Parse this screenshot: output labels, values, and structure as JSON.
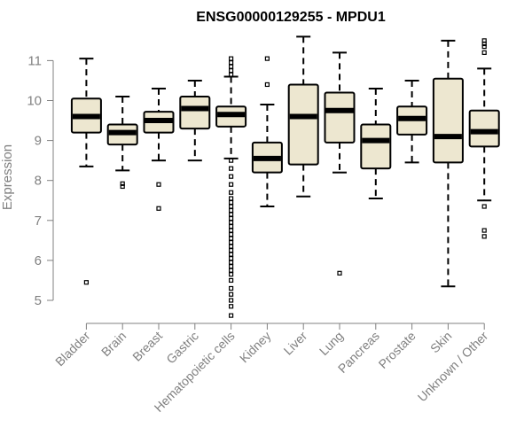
{
  "chart_data": {
    "type": "boxplot",
    "title": "ENSG00000129255 - MPDU1",
    "xlabel": "",
    "ylabel": "Expression",
    "ylim": [
      4.5,
      11.7
    ],
    "yticks": [
      5,
      6,
      7,
      8,
      9,
      10,
      11
    ],
    "grid": false,
    "box_fill": "#EDE7D0",
    "categories": [
      "Bladder",
      "Brain",
      "Breast",
      "Gastric",
      "Hematopoietic cells",
      "Kidney",
      "Liver",
      "Lung",
      "Pancreas",
      "Prostate",
      "Skin",
      "Unknown / Other"
    ],
    "boxes": [
      {
        "name": "Bladder",
        "whisker_low": 8.35,
        "q1": 9.2,
        "median": 9.6,
        "q3": 10.05,
        "whisker_high": 11.05,
        "outliers": [
          5.45
        ]
      },
      {
        "name": "Brain",
        "whisker_low": 8.25,
        "q1": 8.9,
        "median": 9.2,
        "q3": 9.4,
        "whisker_high": 10.1,
        "outliers": [
          7.85,
          7.92
        ]
      },
      {
        "name": "Breast",
        "whisker_low": 8.5,
        "q1": 9.2,
        "median": 9.5,
        "q3": 9.72,
        "whisker_high": 10.3,
        "outliers": [
          7.9,
          7.3
        ]
      },
      {
        "name": "Gastric",
        "whisker_low": 8.5,
        "q1": 9.3,
        "median": 9.8,
        "q3": 10.1,
        "whisker_high": 10.5,
        "outliers": []
      },
      {
        "name": "Hematopoietic cells",
        "whisker_low": 8.55,
        "q1": 9.35,
        "median": 9.65,
        "q3": 9.85,
        "whisker_high": 10.6,
        "outliers": [
          11.05,
          10.95,
          10.85,
          10.75,
          10.65,
          8.5,
          8.3,
          8.1,
          7.9,
          7.7,
          7.55,
          7.45,
          7.35,
          7.25,
          7.15,
          7.05,
          6.95,
          6.85,
          6.75,
          6.65,
          6.55,
          6.45,
          6.35,
          6.25,
          6.15,
          6.05,
          5.95,
          5.85,
          5.75,
          5.65,
          5.5,
          5.3,
          5.15,
          5.0,
          4.85,
          4.62
        ]
      },
      {
        "name": "Kidney",
        "whisker_low": 7.35,
        "q1": 8.2,
        "median": 8.55,
        "q3": 8.95,
        "whisker_high": 9.9,
        "outliers": [
          11.05,
          10.4
        ]
      },
      {
        "name": "Liver",
        "whisker_low": 7.6,
        "q1": 8.4,
        "median": 9.6,
        "q3": 10.4,
        "whisker_high": 11.6,
        "outliers": []
      },
      {
        "name": "Lung",
        "whisker_low": 8.2,
        "q1": 8.95,
        "median": 9.75,
        "q3": 10.2,
        "whisker_high": 11.2,
        "outliers": [
          5.68
        ]
      },
      {
        "name": "Pancreas",
        "whisker_low": 7.55,
        "q1": 8.3,
        "median": 9.0,
        "q3": 9.4,
        "whisker_high": 10.3,
        "outliers": []
      },
      {
        "name": "Prostate",
        "whisker_low": 8.45,
        "q1": 9.15,
        "median": 9.55,
        "q3": 9.85,
        "whisker_high": 10.5,
        "outliers": []
      },
      {
        "name": "Skin",
        "whisker_low": 5.35,
        "q1": 8.45,
        "median": 9.1,
        "q3": 10.55,
        "whisker_high": 11.5,
        "outliers": []
      },
      {
        "name": "Unknown / Other",
        "whisker_low": 7.5,
        "q1": 8.85,
        "median": 9.22,
        "q3": 9.75,
        "whisker_high": 10.8,
        "outliers": [
          11.5,
          11.42,
          11.35,
          11.2,
          7.35,
          6.75,
          6.6
        ]
      }
    ]
  }
}
